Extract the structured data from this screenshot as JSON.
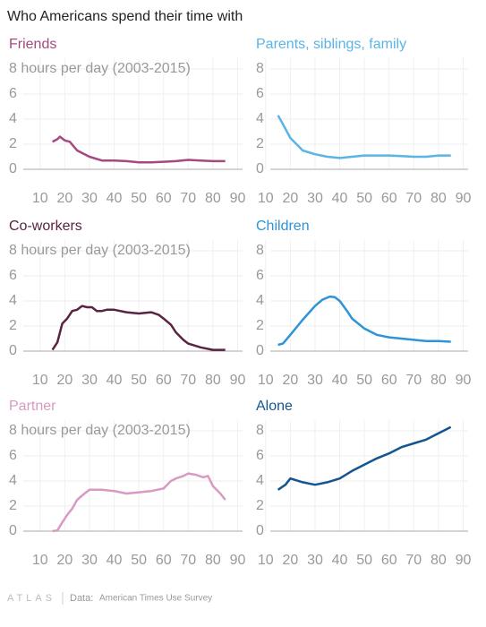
{
  "title": "Who Americans spend their time with",
  "footer": {
    "brand": "ATLAS",
    "source_label": "Data:",
    "source": "American Times Use Survey"
  },
  "chart_data": [
    {
      "type": "line",
      "title": "Friends",
      "color": "#a5497e",
      "x": [
        15,
        17,
        18,
        20,
        22,
        25,
        30,
        35,
        40,
        45,
        50,
        55,
        60,
        65,
        70,
        75,
        80,
        85
      ],
      "values": [
        2.2,
        2.4,
        2.6,
        2.3,
        2.2,
        1.5,
        1.0,
        0.7,
        0.7,
        0.65,
        0.55,
        0.55,
        0.6,
        0.65,
        0.75,
        0.7,
        0.65,
        0.65
      ],
      "xlim": [
        5,
        92
      ],
      "ylim": [
        0,
        8
      ],
      "xticks": [
        10,
        20,
        30,
        40,
        50,
        60,
        70,
        80,
        90
      ],
      "yticks": [
        0,
        2,
        4,
        6,
        {
          "value": 8,
          "label": "8 hours per day (2003-2015)"
        }
      ],
      "grid": true
    },
    {
      "type": "line",
      "title": "Parents, siblings, family",
      "color": "#5ab4e5",
      "x": [
        15,
        17,
        20,
        25,
        30,
        35,
        40,
        45,
        50,
        55,
        60,
        65,
        70,
        75,
        80,
        85
      ],
      "values": [
        4.3,
        3.6,
        2.5,
        1.5,
        1.2,
        1.0,
        0.9,
        1.0,
        1.1,
        1.1,
        1.1,
        1.05,
        1.0,
        1.0,
        1.1,
        1.1
      ],
      "xlim": [
        5,
        92
      ],
      "ylim": [
        0,
        8
      ],
      "xticks": [
        10,
        20,
        30,
        40,
        50,
        60,
        70,
        80,
        90
      ],
      "yticks": [
        0,
        2,
        4,
        6,
        8
      ],
      "grid": true
    },
    {
      "type": "line",
      "title": "Co-workers",
      "color": "#5a2342",
      "x": [
        15,
        17,
        19,
        21,
        23,
        25,
        27,
        29,
        31,
        33,
        35,
        37,
        40,
        45,
        50,
        55,
        58,
        60,
        63,
        65,
        68,
        70,
        75,
        80,
        85
      ],
      "values": [
        0.1,
        0.7,
        2.2,
        2.6,
        3.2,
        3.3,
        3.6,
        3.5,
        3.5,
        3.2,
        3.2,
        3.3,
        3.3,
        3.1,
        3.0,
        3.1,
        2.9,
        2.6,
        2.1,
        1.5,
        0.9,
        0.6,
        0.3,
        0.1,
        0.1
      ],
      "xlim": [
        5,
        92
      ],
      "ylim": [
        0,
        8
      ],
      "xticks": [
        10,
        20,
        30,
        40,
        50,
        60,
        70,
        80,
        90
      ],
      "yticks": [
        0,
        2,
        4,
        6,
        {
          "value": 8,
          "label": "8 hours per day (2003-2015)"
        }
      ],
      "grid": true
    },
    {
      "type": "line",
      "title": "Children",
      "color": "#2e93d8",
      "x": [
        15,
        17,
        20,
        25,
        30,
        33,
        36,
        38,
        40,
        43,
        45,
        50,
        55,
        60,
        65,
        70,
        75,
        80,
        85
      ],
      "values": [
        0.5,
        0.6,
        1.3,
        2.5,
        3.6,
        4.1,
        4.35,
        4.3,
        4.0,
        3.2,
        2.6,
        1.8,
        1.3,
        1.1,
        1.0,
        0.9,
        0.8,
        0.8,
        0.75
      ],
      "xlim": [
        5,
        92
      ],
      "ylim": [
        0,
        8
      ],
      "xticks": [
        10,
        20,
        30,
        40,
        50,
        60,
        70,
        80,
        90
      ],
      "yticks": [
        0,
        2,
        4,
        6,
        8
      ],
      "grid": true
    },
    {
      "type": "line",
      "title": "Partner",
      "color": "#d99ac2",
      "x": [
        15,
        17,
        19,
        21,
        23,
        25,
        28,
        30,
        35,
        40,
        45,
        50,
        55,
        60,
        63,
        65,
        68,
        70,
        73,
        76,
        78,
        80,
        83,
        85
      ],
      "values": [
        0,
        0.05,
        0.7,
        1.3,
        1.8,
        2.5,
        3.0,
        3.3,
        3.3,
        3.2,
        3.0,
        3.1,
        3.2,
        3.4,
        4.0,
        4.2,
        4.4,
        4.6,
        4.5,
        4.3,
        4.4,
        3.6,
        3.0,
        2.5
      ],
      "xlim": [
        5,
        92
      ],
      "ylim": [
        0,
        8
      ],
      "xticks": [
        10,
        20,
        30,
        40,
        50,
        60,
        70,
        80,
        90
      ],
      "yticks": [
        0,
        2,
        4,
        6,
        {
          "value": 8,
          "label": "8 hours per day (2003-2015)"
        }
      ],
      "grid": true
    },
    {
      "type": "line",
      "title": "Alone",
      "color": "#15558f",
      "x": [
        15,
        18,
        20,
        25,
        30,
        35,
        40,
        45,
        50,
        55,
        60,
        65,
        70,
        75,
        80,
        85
      ],
      "values": [
        3.3,
        3.7,
        4.2,
        3.9,
        3.7,
        3.9,
        4.2,
        4.8,
        5.3,
        5.8,
        6.2,
        6.7,
        7.0,
        7.3,
        7.8,
        8.3
      ],
      "xlim": [
        5,
        92
      ],
      "ylim": [
        0,
        8
      ],
      "xticks": [
        10,
        20,
        30,
        40,
        50,
        60,
        70,
        80,
        90
      ],
      "yticks": [
        0,
        2,
        4,
        6,
        8
      ],
      "grid": true
    }
  ]
}
